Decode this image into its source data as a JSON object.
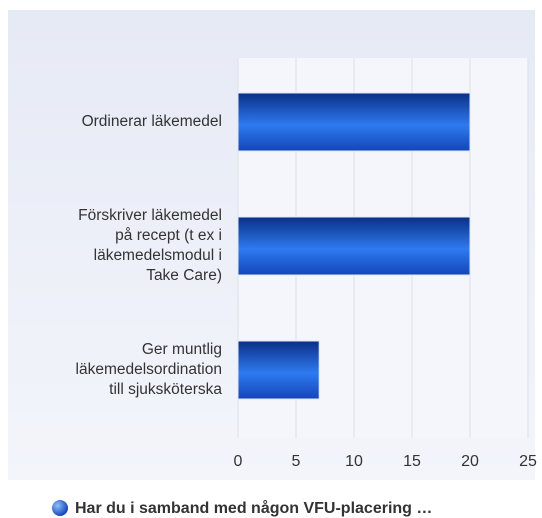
{
  "chart_data": {
    "type": "bar",
    "orientation": "horizontal",
    "categories": [
      "Ordinerar läkemedel",
      "Förskriver läkemedel på recept (t ex i läkemedelsmodul i Take Care)",
      "Ger muntlig läkemedelsordination till sjuksköterska"
    ],
    "series": [
      {
        "name": "Har du i samband med någon VFU-placering …",
        "color": "#1f5fd6",
        "values": [
          20,
          20,
          7
        ]
      }
    ],
    "xlim": [
      0,
      25
    ],
    "xticks": [
      0,
      5,
      10,
      15,
      20,
      25
    ],
    "grid": true,
    "legend": "bottom"
  }
}
